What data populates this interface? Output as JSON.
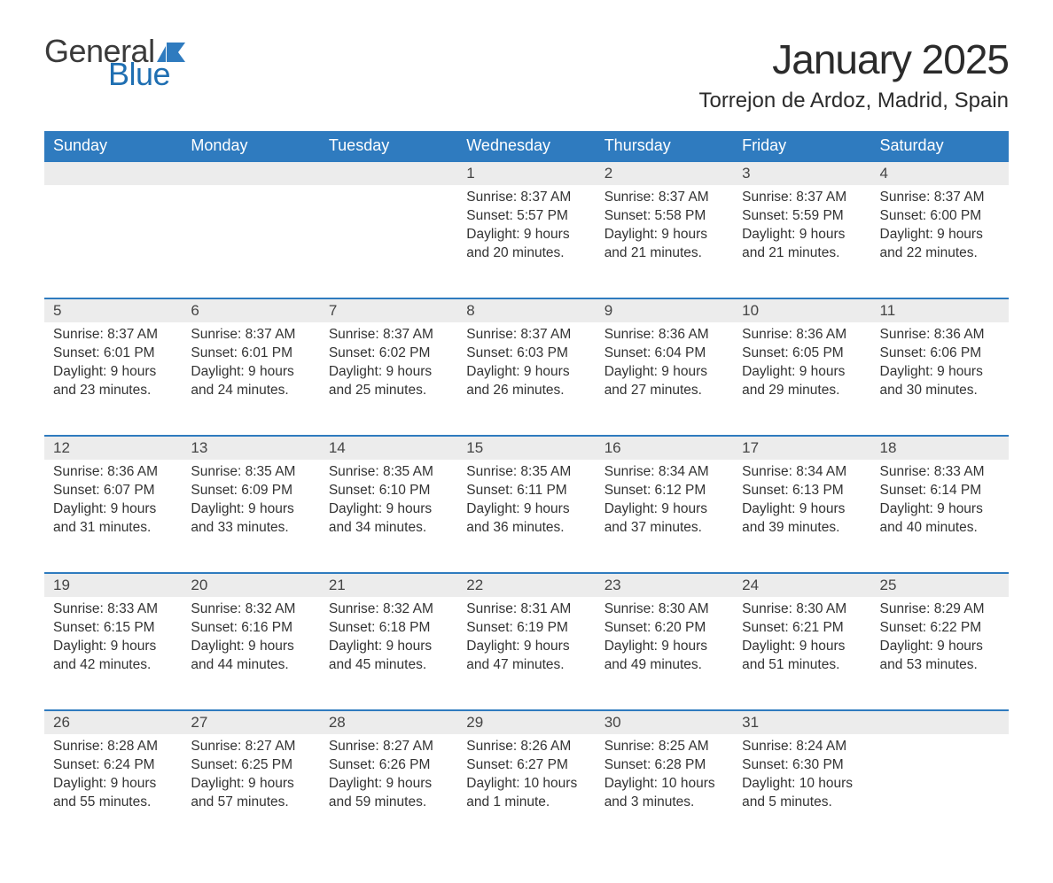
{
  "logo": {
    "text_general": "General",
    "text_blue": "Blue",
    "shape_color": "#2f7bbf"
  },
  "title": "January 2025",
  "location": "Torrejon de Ardoz, Madrid, Spain",
  "colors": {
    "header_bg": "#2f7bbf",
    "header_text": "#ffffff",
    "daynum_bg": "#ececec",
    "border": "#2f7bbf",
    "body_text": "#333333",
    "logo_gray": "#3a3a3a",
    "logo_blue": "#1f6fb2"
  },
  "typography": {
    "month_title_fontsize": 46,
    "location_fontsize": 24,
    "weekday_fontsize": 18,
    "daynum_fontsize": 17,
    "cell_fontsize": 15.5
  },
  "layout": {
    "columns": 7,
    "rows": 5,
    "first_day_column_index": 3
  },
  "days_of_week": [
    "Sunday",
    "Monday",
    "Tuesday",
    "Wednesday",
    "Thursday",
    "Friday",
    "Saturday"
  ],
  "days": [
    {
      "n": 1,
      "sunrise": "8:37 AM",
      "sunset": "5:57 PM",
      "daylight": "9 hours and 20 minutes."
    },
    {
      "n": 2,
      "sunrise": "8:37 AM",
      "sunset": "5:58 PM",
      "daylight": "9 hours and 21 minutes."
    },
    {
      "n": 3,
      "sunrise": "8:37 AM",
      "sunset": "5:59 PM",
      "daylight": "9 hours and 21 minutes."
    },
    {
      "n": 4,
      "sunrise": "8:37 AM",
      "sunset": "6:00 PM",
      "daylight": "9 hours and 22 minutes."
    },
    {
      "n": 5,
      "sunrise": "8:37 AM",
      "sunset": "6:01 PM",
      "daylight": "9 hours and 23 minutes."
    },
    {
      "n": 6,
      "sunrise": "8:37 AM",
      "sunset": "6:01 PM",
      "daylight": "9 hours and 24 minutes."
    },
    {
      "n": 7,
      "sunrise": "8:37 AM",
      "sunset": "6:02 PM",
      "daylight": "9 hours and 25 minutes."
    },
    {
      "n": 8,
      "sunrise": "8:37 AM",
      "sunset": "6:03 PM",
      "daylight": "9 hours and 26 minutes."
    },
    {
      "n": 9,
      "sunrise": "8:36 AM",
      "sunset": "6:04 PM",
      "daylight": "9 hours and 27 minutes."
    },
    {
      "n": 10,
      "sunrise": "8:36 AM",
      "sunset": "6:05 PM",
      "daylight": "9 hours and 29 minutes."
    },
    {
      "n": 11,
      "sunrise": "8:36 AM",
      "sunset": "6:06 PM",
      "daylight": "9 hours and 30 minutes."
    },
    {
      "n": 12,
      "sunrise": "8:36 AM",
      "sunset": "6:07 PM",
      "daylight": "9 hours and 31 minutes."
    },
    {
      "n": 13,
      "sunrise": "8:35 AM",
      "sunset": "6:09 PM",
      "daylight": "9 hours and 33 minutes."
    },
    {
      "n": 14,
      "sunrise": "8:35 AM",
      "sunset": "6:10 PM",
      "daylight": "9 hours and 34 minutes."
    },
    {
      "n": 15,
      "sunrise": "8:35 AM",
      "sunset": "6:11 PM",
      "daylight": "9 hours and 36 minutes."
    },
    {
      "n": 16,
      "sunrise": "8:34 AM",
      "sunset": "6:12 PM",
      "daylight": "9 hours and 37 minutes."
    },
    {
      "n": 17,
      "sunrise": "8:34 AM",
      "sunset": "6:13 PM",
      "daylight": "9 hours and 39 minutes."
    },
    {
      "n": 18,
      "sunrise": "8:33 AM",
      "sunset": "6:14 PM",
      "daylight": "9 hours and 40 minutes."
    },
    {
      "n": 19,
      "sunrise": "8:33 AM",
      "sunset": "6:15 PM",
      "daylight": "9 hours and 42 minutes."
    },
    {
      "n": 20,
      "sunrise": "8:32 AM",
      "sunset": "6:16 PM",
      "daylight": "9 hours and 44 minutes."
    },
    {
      "n": 21,
      "sunrise": "8:32 AM",
      "sunset": "6:18 PM",
      "daylight": "9 hours and 45 minutes."
    },
    {
      "n": 22,
      "sunrise": "8:31 AM",
      "sunset": "6:19 PM",
      "daylight": "9 hours and 47 minutes."
    },
    {
      "n": 23,
      "sunrise": "8:30 AM",
      "sunset": "6:20 PM",
      "daylight": "9 hours and 49 minutes."
    },
    {
      "n": 24,
      "sunrise": "8:30 AM",
      "sunset": "6:21 PM",
      "daylight": "9 hours and 51 minutes."
    },
    {
      "n": 25,
      "sunrise": "8:29 AM",
      "sunset": "6:22 PM",
      "daylight": "9 hours and 53 minutes."
    },
    {
      "n": 26,
      "sunrise": "8:28 AM",
      "sunset": "6:24 PM",
      "daylight": "9 hours and 55 minutes."
    },
    {
      "n": 27,
      "sunrise": "8:27 AM",
      "sunset": "6:25 PM",
      "daylight": "9 hours and 57 minutes."
    },
    {
      "n": 28,
      "sunrise": "8:27 AM",
      "sunset": "6:26 PM",
      "daylight": "9 hours and 59 minutes."
    },
    {
      "n": 29,
      "sunrise": "8:26 AM",
      "sunset": "6:27 PM",
      "daylight": "10 hours and 1 minute."
    },
    {
      "n": 30,
      "sunrise": "8:25 AM",
      "sunset": "6:28 PM",
      "daylight": "10 hours and 3 minutes."
    },
    {
      "n": 31,
      "sunrise": "8:24 AM",
      "sunset": "6:30 PM",
      "daylight": "10 hours and 5 minutes."
    }
  ],
  "labels": {
    "sunrise": "Sunrise:",
    "sunset": "Sunset:",
    "daylight": "Daylight:"
  }
}
